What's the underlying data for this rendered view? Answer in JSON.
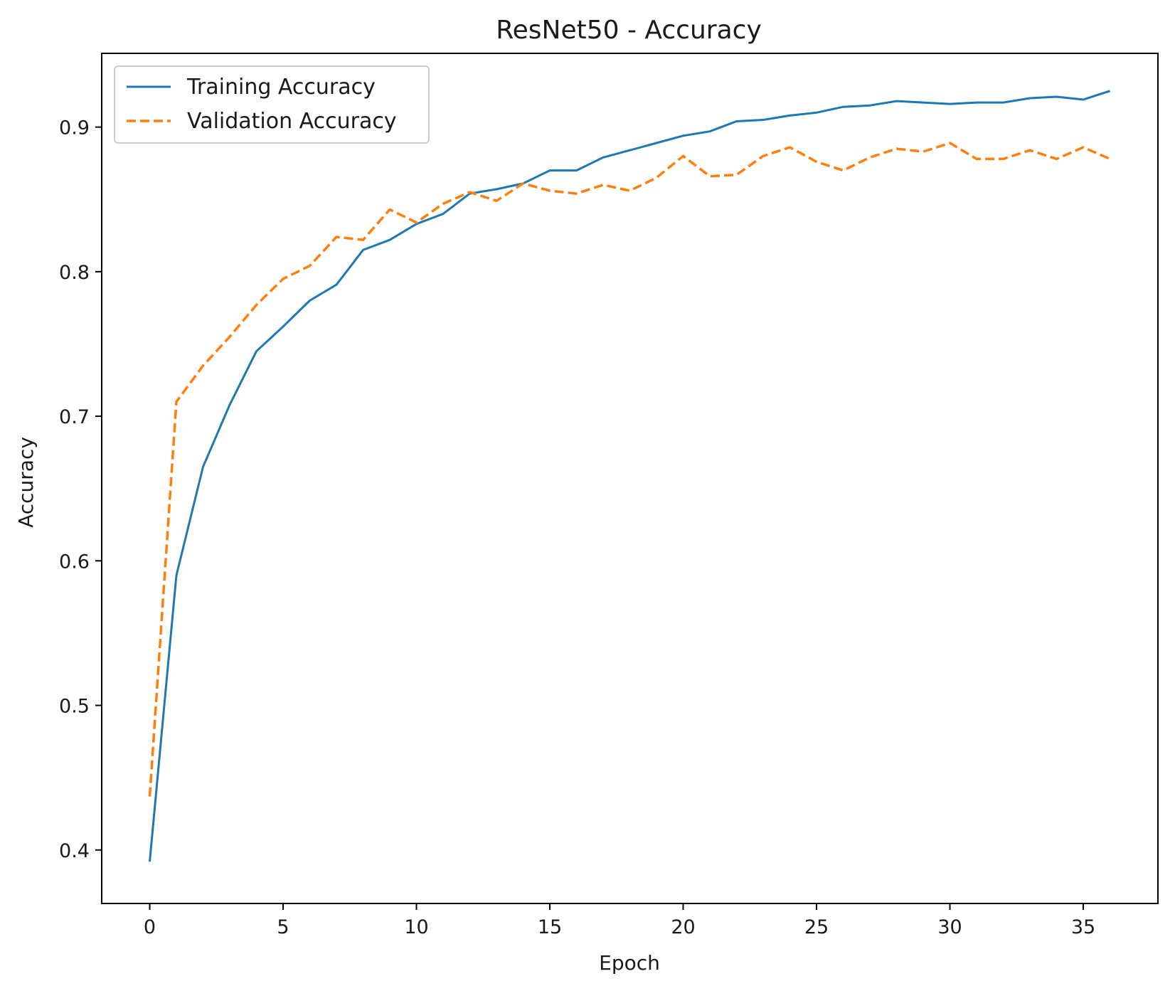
{
  "chart_data": {
    "type": "line",
    "title": "ResNet50 - Accuracy",
    "xlabel": "Epoch",
    "ylabel": "Accuracy",
    "xlim": [
      -1.8,
      37.8
    ],
    "ylim": [
      0.363,
      0.951
    ],
    "xticks": [
      0,
      5,
      10,
      15,
      20,
      25,
      30,
      35
    ],
    "yticks": [
      0.4,
      0.5,
      0.6,
      0.7,
      0.8,
      0.9
    ],
    "ytick_labels": [
      "0.4",
      "0.5",
      "0.6",
      "0.7",
      "0.8",
      "0.9"
    ],
    "grid": false,
    "legend_position": "upper-left",
    "x": [
      0,
      1,
      2,
      3,
      4,
      5,
      6,
      7,
      8,
      9,
      10,
      11,
      12,
      13,
      14,
      15,
      16,
      17,
      18,
      19,
      20,
      21,
      22,
      23,
      24,
      25,
      26,
      27,
      28,
      29,
      30,
      31,
      32,
      33,
      34,
      35,
      36
    ],
    "series": [
      {
        "name": "Training Accuracy",
        "color": "#1f77b4",
        "style": "solid",
        "values": [
          0.392,
          0.59,
          0.665,
          0.708,
          0.745,
          0.762,
          0.78,
          0.791,
          0.815,
          0.822,
          0.833,
          0.84,
          0.854,
          0.857,
          0.861,
          0.87,
          0.87,
          0.879,
          0.884,
          0.889,
          0.894,
          0.897,
          0.904,
          0.905,
          0.908,
          0.91,
          0.914,
          0.915,
          0.918,
          0.917,
          0.916,
          0.917,
          0.917,
          0.92,
          0.921,
          0.919,
          0.925
        ]
      },
      {
        "name": "Validation Accuracy",
        "color": "#ff7f0e",
        "style": "dashed",
        "values": [
          0.437,
          0.71,
          0.735,
          0.755,
          0.777,
          0.795,
          0.804,
          0.824,
          0.822,
          0.843,
          0.834,
          0.847,
          0.855,
          0.849,
          0.861,
          0.856,
          0.854,
          0.86,
          0.856,
          0.865,
          0.88,
          0.866,
          0.867,
          0.88,
          0.886,
          0.876,
          0.87,
          0.879,
          0.885,
          0.883,
          0.889,
          0.878,
          0.878,
          0.884,
          0.878,
          0.886,
          0.878
        ]
      }
    ]
  }
}
